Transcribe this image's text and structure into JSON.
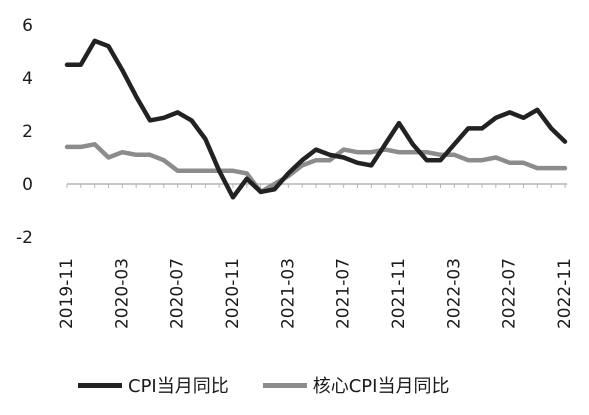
{
  "chart_data": {
    "type": "line",
    "title": "",
    "xlabel": "",
    "ylabel": "",
    "ylim": [
      -2,
      6
    ],
    "yticks": [
      "6",
      "4",
      "2",
      "0",
      "-2"
    ],
    "x": [
      "2019-11",
      "2019-12",
      "2020-01",
      "2020-02",
      "2020-03",
      "2020-04",
      "2020-05",
      "2020-06",
      "2020-07",
      "2020-08",
      "2020-09",
      "2020-10",
      "2020-11",
      "2020-12",
      "2021-01",
      "2021-02",
      "2021-03",
      "2021-04",
      "2021-05",
      "2021-06",
      "2021-07",
      "2021-08",
      "2021-09",
      "2021-10",
      "2021-11",
      "2021-12",
      "2022-01",
      "2022-02",
      "2022-03",
      "2022-04",
      "2022-05",
      "2022-06",
      "2022-07",
      "2022-08",
      "2022-09",
      "2022-10",
      "2022-11"
    ],
    "xtick_labels": [
      "2019-11",
      "2020-03",
      "2020-07",
      "2020-11",
      "2021-03",
      "2021-07",
      "2021-11",
      "2022-03",
      "2022-07",
      "2022-11"
    ],
    "grid": false,
    "legend_position": "bottom",
    "series": [
      {
        "name": "CPI当月同比",
        "color": "#222222",
        "values": [
          4.5,
          4.5,
          5.4,
          5.2,
          4.3,
          3.3,
          2.4,
          2.5,
          2.7,
          2.4,
          1.7,
          0.5,
          -0.5,
          0.2,
          -0.3,
          -0.2,
          0.4,
          0.9,
          1.3,
          1.1,
          1.0,
          0.8,
          0.7,
          1.5,
          2.3,
          1.5,
          0.9,
          0.9,
          1.5,
          2.1,
          2.1,
          2.5,
          2.7,
          2.5,
          2.8,
          2.1,
          1.6
        ]
      },
      {
        "name": "核心CPI当月同比",
        "color": "#8c8c8c",
        "values": [
          1.4,
          1.4,
          1.5,
          1.0,
          1.2,
          1.1,
          1.1,
          0.9,
          0.5,
          0.5,
          0.5,
          0.5,
          0.5,
          0.4,
          -0.3,
          0.0,
          0.3,
          0.7,
          0.9,
          0.9,
          1.3,
          1.2,
          1.2,
          1.3,
          1.2,
          1.2,
          1.2,
          1.1,
          1.1,
          0.9,
          0.9,
          1.0,
          0.8,
          0.8,
          0.6,
          0.6,
          0.6
        ]
      }
    ]
  }
}
